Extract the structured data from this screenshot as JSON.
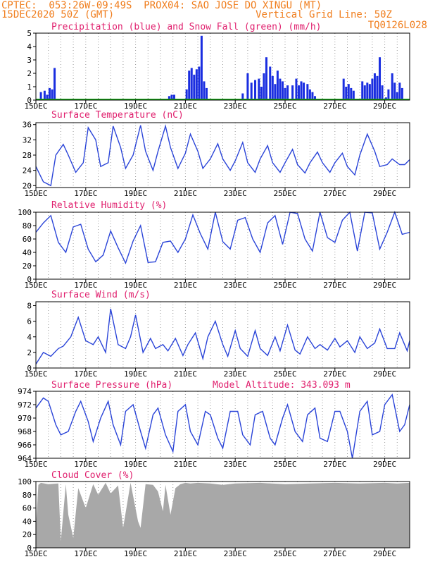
{
  "header": {
    "line1": "CPTEC:  053:26W-09:49S  PROX04: SAO JOSE DO XINGU (MT)",
    "line2": "15DEC2020 50Z (GMT)",
    "grid_note": "Vertical Grid Line: 50Z",
    "code": "TQ0126L028"
  },
  "colors": {
    "header": "#f07e1e",
    "title": "#e0206e",
    "line": "#2a44d8",
    "bar": "#1a2ee0",
    "snow": "#1aa81a",
    "cloud": "#a8a8a8"
  },
  "date_labels": [
    "15DEC",
    "17DEC",
    "19DEC",
    "21DEC",
    "23DEC",
    "25DEC",
    "27DEC",
    "29DEC"
  ],
  "panels": {
    "precip": {
      "title": "Precipitation (blue) and Snow Fall (green) (mm/h)",
      "yticks": [
        "0",
        "1",
        "2",
        "3",
        "4",
        "5"
      ]
    },
    "temp": {
      "title": "Surface Temperature (nC)",
      "yticks": [
        "20",
        "24",
        "28",
        "32",
        "36"
      ]
    },
    "rh": {
      "title": "Relative Humidity (%)",
      "yticks": [
        "0",
        "20",
        "40",
        "60",
        "80",
        "100"
      ]
    },
    "wind": {
      "title": "Surface Wind (m/s)",
      "yticks": [
        "0",
        "2",
        "4",
        "6",
        "8"
      ]
    },
    "pres": {
      "title": "Surface Pressure (hPa)",
      "subtitle": "Model Altitude: 343.093 m",
      "yticks": [
        "964",
        "966",
        "968",
        "970",
        "972",
        "974"
      ]
    },
    "cloud": {
      "title": "Cloud Cover (%)",
      "yticks": [
        "0",
        "20",
        "40",
        "60",
        "80",
        "100"
      ]
    }
  },
  "chart_data": [
    {
      "type": "bar",
      "title": "Precipitation (blue) and Snow Fall (green) (mm/h)",
      "xlabel": "",
      "ylabel": "",
      "xlim": [
        0,
        15
      ],
      "ylim": [
        0,
        5
      ],
      "x": [
        0.2,
        0.35,
        0.45,
        0.55,
        0.65,
        0.75,
        1.0,
        1.6,
        5.35,
        5.45,
        5.55,
        6.05,
        6.15,
        6.25,
        6.35,
        6.45,
        6.55,
        6.65,
        6.75,
        6.85,
        7.0,
        7.1,
        8.3,
        8.5,
        8.65,
        8.8,
        8.95,
        9.05,
        9.15,
        9.25,
        9.4,
        9.5,
        9.6,
        9.7,
        9.8,
        9.9,
        10.0,
        10.1,
        10.3,
        10.45,
        10.55,
        10.65,
        10.75,
        10.9,
        11.0,
        11.1,
        11.2,
        12.35,
        12.45,
        12.55,
        12.65,
        12.75,
        13.1,
        13.2,
        13.3,
        13.4,
        13.5,
        13.6,
        13.7,
        13.8,
        13.9,
        14.05,
        14.15,
        14.3,
        14.4,
        14.5,
        14.6,
        14.7
      ],
      "values": [
        0.6,
        0.7,
        0.4,
        0.9,
        0.8,
        2.4,
        0.1,
        0.1,
        0.3,
        0.4,
        0.4,
        0.8,
        2.2,
        2.4,
        1.9,
        2.3,
        2.5,
        4.8,
        1.4,
        0.9,
        0.1,
        0.1,
        0.5,
        2.0,
        1.3,
        1.5,
        1.6,
        1.0,
        2.0,
        3.2,
        2.5,
        1.8,
        1.2,
        2.2,
        1.6,
        1.4,
        0.9,
        1.1,
        1.1,
        1.6,
        1.1,
        1.4,
        1.3,
        1.2,
        0.8,
        0.6,
        0.3,
        1.6,
        1.0,
        1.2,
        0.9,
        0.7,
        1.4,
        1.1,
        1.3,
        1.2,
        1.6,
        2.0,
        1.8,
        3.2,
        1.1,
        0.2,
        0.8,
        2.0,
        1.3,
        0.6,
        1.3,
        0.9
      ],
      "snow": 0
    },
    {
      "type": "line",
      "title": "Surface Temperature (nC)",
      "xlabel": "",
      "ylabel": "",
      "xlim": [
        0,
        15
      ],
      "ylim": [
        19.5,
        36.5
      ],
      "x": [
        0,
        0.3,
        0.6,
        0.8,
        1.1,
        1.3,
        1.6,
        1.9,
        2.1,
        2.4,
        2.6,
        2.9,
        3.1,
        3.4,
        3.6,
        3.9,
        4.2,
        4.4,
        4.7,
        4.9,
        5.2,
        5.4,
        5.7,
        6.0,
        6.2,
        6.5,
        6.7,
        7.0,
        7.3,
        7.5,
        7.8,
        8.0,
        8.3,
        8.5,
        8.8,
        9.0,
        9.3,
        9.5,
        9.8,
        10.0,
        10.3,
        10.5,
        10.8,
        11.0,
        11.3,
        11.5,
        11.8,
        12.0,
        12.3,
        12.5,
        12.8,
        13.0,
        13.3,
        13.6,
        13.8,
        14.1,
        14.3,
        14.6,
        14.8,
        15
      ],
      "values": [
        25,
        21,
        20,
        28,
        30.8,
        28,
        23.5,
        26,
        35.2,
        32,
        25,
        26,
        35.6,
        30,
        24.5,
        28,
        35.8,
        29,
        24,
        29,
        35.6,
        30,
        24.5,
        28.5,
        33.5,
        29,
        24.5,
        27,
        31,
        27,
        24,
        26.5,
        31.3,
        26,
        23.5,
        27,
        30.5,
        26,
        23.5,
        26,
        29.5,
        25.5,
        23.3,
        26,
        28.8,
        26,
        23.5,
        26,
        28.5,
        25,
        22.8,
        28,
        33.5,
        29,
        25,
        25.5,
        27,
        25.5,
        25.5,
        26.8
      ]
    },
    {
      "type": "line",
      "title": "Relative Humidity (%)",
      "xlabel": "",
      "ylabel": "",
      "xlim": [
        0,
        15
      ],
      "ylim": [
        0,
        100
      ],
      "x": [
        0,
        0.3,
        0.6,
        0.9,
        1.2,
        1.5,
        1.8,
        2.1,
        2.4,
        2.7,
        3.0,
        3.3,
        3.6,
        3.9,
        4.2,
        4.5,
        4.8,
        5.1,
        5.4,
        5.7,
        6.0,
        6.3,
        6.6,
        6.9,
        7.2,
        7.5,
        7.8,
        8.1,
        8.4,
        8.7,
        9.0,
        9.3,
        9.6,
        9.9,
        10.2,
        10.5,
        10.8,
        11.1,
        11.4,
        11.7,
        12.0,
        12.3,
        12.6,
        12.9,
        13.2,
        13.5,
        13.8,
        14.1,
        14.4,
        14.7,
        15
      ],
      "values": [
        70,
        84,
        95,
        55,
        40,
        78,
        82,
        45,
        26,
        36,
        72,
        47,
        24,
        57,
        80,
        25,
        26,
        55,
        57,
        40,
        60,
        96,
        68,
        45,
        100,
        56,
        45,
        88,
        92,
        60,
        40,
        84,
        95,
        52,
        100,
        98,
        60,
        42,
        100,
        62,
        55,
        88,
        100,
        42,
        100,
        99,
        45,
        70,
        100,
        67,
        70
      ]
    },
    {
      "type": "line",
      "title": "Surface Wind (m/s)",
      "xlabel": "",
      "ylabel": "",
      "xlim": [
        0,
        15
      ],
      "ylim": [
        0,
        8.5
      ],
      "x": [
        0,
        0.3,
        0.6,
        0.9,
        1.1,
        1.4,
        1.7,
        2.0,
        2.3,
        2.5,
        2.8,
        3.0,
        3.3,
        3.6,
        3.8,
        4.0,
        4.3,
        4.6,
        4.8,
        5.1,
        5.3,
        5.6,
        5.9,
        6.1,
        6.4,
        6.7,
        6.9,
        7.2,
        7.5,
        7.7,
        8.0,
        8.2,
        8.5,
        8.8,
        9.0,
        9.3,
        9.6,
        9.8,
        10.1,
        10.4,
        10.6,
        10.9,
        11.2,
        11.4,
        11.7,
        12.0,
        12.2,
        12.5,
        12.8,
        13.0,
        13.3,
        13.6,
        13.8,
        14.1,
        14.4,
        14.6,
        14.9,
        15
      ],
      "values": [
        0.5,
        2,
        1.5,
        2.5,
        2.8,
        4,
        6.5,
        3.5,
        3,
        4,
        2,
        7.6,
        3,
        2.5,
        4,
        6.8,
        2,
        3.8,
        2.5,
        3,
        2.2,
        3.8,
        1.6,
        3,
        4.5,
        1.2,
        4,
        6,
        3,
        1.5,
        4.8,
        2.5,
        1.5,
        4.8,
        2.5,
        1.6,
        4,
        2.2,
        5.5,
        2.3,
        1.8,
        4,
        2.5,
        3,
        2.3,
        3.8,
        2.7,
        3.5,
        2,
        4,
        2.5,
        3.2,
        5,
        2.5,
        2.5,
        4.5,
        2.2,
        3.5
      ]
    },
    {
      "type": "line",
      "title": "Surface Pressure (hPa)",
      "xlabel": "",
      "ylabel": "",
      "xlim": [
        0,
        15
      ],
      "ylim": [
        964,
        974
      ],
      "x": [
        0,
        0.3,
        0.5,
        0.8,
        1.0,
        1.3,
        1.6,
        1.8,
        2.1,
        2.3,
        2.6,
        2.9,
        3.1,
        3.4,
        3.6,
        3.9,
        4.2,
        4.4,
        4.7,
        4.9,
        5.2,
        5.5,
        5.7,
        6.0,
        6.2,
        6.5,
        6.8,
        7.0,
        7.3,
        7.5,
        7.8,
        8.1,
        8.3,
        8.6,
        8.8,
        9.1,
        9.4,
        9.6,
        9.9,
        10.1,
        10.4,
        10.7,
        10.9,
        11.2,
        11.4,
        11.7,
        12.0,
        12.2,
        12.5,
        12.7,
        13.0,
        13.3,
        13.5,
        13.8,
        14.0,
        14.3,
        14.6,
        14.8,
        15
      ],
      "values": [
        971.5,
        973,
        972.5,
        969,
        967.5,
        968,
        971,
        972.5,
        969.5,
        966.5,
        970,
        972.5,
        969,
        966,
        971,
        972,
        968,
        965.5,
        970.5,
        971.5,
        967.5,
        965,
        971,
        972,
        968,
        966,
        971,
        970.5,
        967,
        965.5,
        971,
        971,
        967.5,
        966,
        970.5,
        971,
        967,
        966,
        970,
        972,
        968,
        966.5,
        970.5,
        971.5,
        967,
        966.5,
        971,
        971,
        968,
        964,
        971,
        972.5,
        967.5,
        968,
        972,
        973.5,
        968,
        969,
        972
      ]
    },
    {
      "type": "area",
      "title": "Cloud Cover (%)",
      "xlabel": "",
      "ylabel": "",
      "xlim": [
        0,
        15
      ],
      "ylim": [
        0,
        100
      ],
      "x": [
        0,
        0.1,
        0.2,
        0.5,
        0.9,
        1.0,
        1.2,
        1.3,
        1.5,
        1.7,
        2.0,
        2.3,
        2.5,
        2.8,
        3.0,
        3.3,
        3.5,
        3.8,
        4.1,
        4.2,
        4.4,
        4.7,
        4.9,
        5.1,
        5.2,
        5.4,
        5.6,
        5.8,
        6.0,
        6.2,
        6.5,
        7.0,
        7.5,
        8.0,
        9.0,
        10.0,
        11.0,
        12.0,
        13.0,
        14.0,
        14.5,
        15
      ],
      "values": [
        30,
        95,
        98,
        96,
        97,
        10,
        96,
        50,
        15,
        90,
        60,
        96,
        80,
        98,
        82,
        94,
        30,
        98,
        40,
        30,
        96,
        95,
        85,
        55,
        95,
        50,
        90,
        96,
        98,
        97,
        98,
        97,
        95,
        97,
        98,
        96,
        97,
        98,
        97,
        98,
        97,
        98
      ]
    }
  ]
}
